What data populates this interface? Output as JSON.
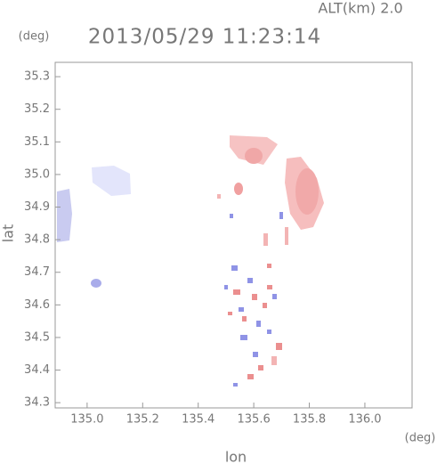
{
  "chart_data": {
    "type": "map",
    "title": "2013/05/29 11:23:14",
    "subtitle": "ALT(km) 2.0",
    "x_label": "lon",
    "y_label": "lat",
    "x_unit": "(deg)",
    "y_unit": "(deg)",
    "xlim": [
      134.885,
      136.17
    ],
    "ylim": [
      34.284,
      35.344
    ],
    "xticks": [
      {
        "value": 135.0,
        "label": "135.0"
      },
      135.2,
      135.4,
      135.6,
      135.8,
      {
        "value": 136.0,
        "label": "136.0"
      }
    ],
    "yticks": [
      34.3,
      34.4,
      34.5,
      34.6,
      34.7,
      34.8,
      34.9,
      {
        "value": 35.0,
        "label": "35.0"
      },
      35.1,
      35.2,
      35.3
    ]
  }
}
